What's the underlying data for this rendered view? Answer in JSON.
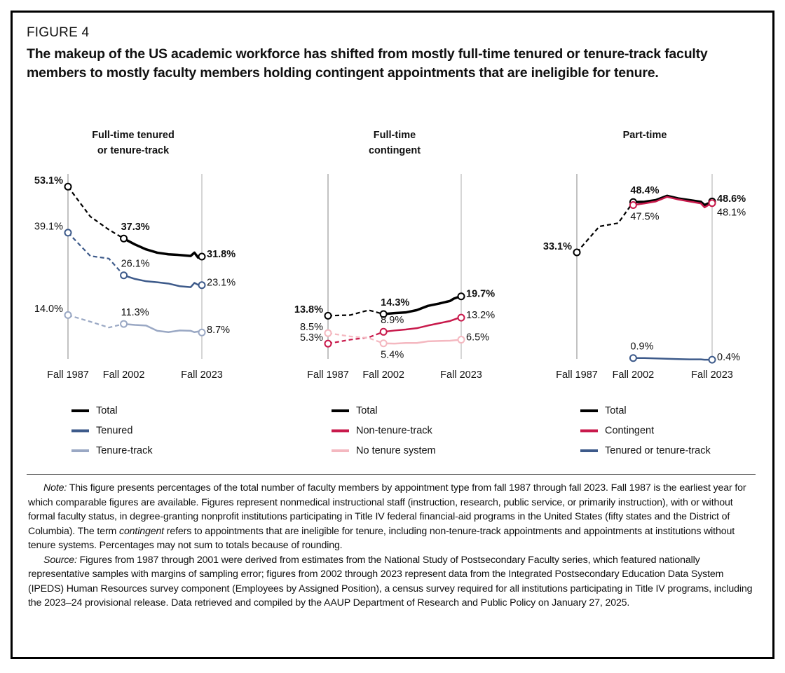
{
  "figure_label": "FIGURE 4",
  "title": "The makeup of the US academic workforce has shifted from mostly full-time tenured or tenure-track faculty members to mostly faculty members holding contingent appointments that are ineligible for tenure.",
  "chart_data": [
    {
      "type": "line",
      "title": "Full-time tenured or tenure-track",
      "x": [
        1987,
        1993,
        1998,
        2002,
        2005,
        2008,
        2011,
        2014,
        2017,
        2020,
        2021,
        2022,
        2023
      ],
      "xlim": [
        1987,
        2023
      ],
      "xticks": [
        {
          "value": 1987,
          "label": "Fall 1987"
        },
        {
          "value": 2002,
          "label": "Fall 2002"
        },
        {
          "value": 2023,
          "label": "Fall 2023"
        }
      ],
      "ylim": [
        0,
        57
      ],
      "dashed_until": 2002,
      "series": [
        {
          "name": "Total",
          "color": "#000000",
          "values": [
            53.1,
            44.0,
            40.0,
            37.3,
            35.5,
            34.0,
            33.0,
            32.5,
            32.3,
            32.0,
            33.0,
            31.5,
            31.8
          ],
          "value_labels": [
            "53.1%",
            null,
            null,
            "37.3%",
            null,
            null,
            null,
            null,
            null,
            null,
            null,
            null,
            "31.8%"
          ]
        },
        {
          "name": "Tenured",
          "color": "#3d5a8a",
          "values": [
            39.1,
            32.0,
            31.2,
            26.1,
            25.0,
            24.3,
            24.0,
            23.6,
            22.8,
            22.5,
            23.8,
            23.2,
            23.1
          ],
          "value_labels": [
            "39.1%",
            null,
            null,
            "26.1%",
            null,
            null,
            null,
            null,
            null,
            null,
            null,
            null,
            "23.1%"
          ]
        },
        {
          "name": "Tenure-track",
          "color": "#9aa8c4",
          "values": [
            14.0,
            12.0,
            10.2,
            11.3,
            11.0,
            10.8,
            9.2,
            8.8,
            9.3,
            9.2,
            8.8,
            9.0,
            8.7
          ],
          "value_labels": [
            "14.0%",
            null,
            null,
            "11.3%",
            null,
            null,
            null,
            null,
            null,
            null,
            null,
            null,
            "8.7%"
          ]
        }
      ]
    },
    {
      "type": "line",
      "title": "Full-time contingent",
      "x": [
        1987,
        1993,
        1998,
        2002,
        2005,
        2008,
        2011,
        2014,
        2017,
        2020,
        2021,
        2022,
        2023
      ],
      "xlim": [
        1987,
        2023
      ],
      "xticks": [
        {
          "value": 1987,
          "label": "Fall 1987"
        },
        {
          "value": 2002,
          "label": "Fall 2002"
        },
        {
          "value": 2023,
          "label": "Fall 2023"
        }
      ],
      "ylim": [
        0,
        57
      ],
      "dashed_until": 2002,
      "series": [
        {
          "name": "Total",
          "color": "#000000",
          "values": [
            13.8,
            14.0,
            15.5,
            14.3,
            14.6,
            14.8,
            15.5,
            16.8,
            17.5,
            18.3,
            19.0,
            19.4,
            19.7
          ],
          "value_labels": [
            "13.8%",
            null,
            null,
            "14.3%",
            null,
            null,
            null,
            null,
            null,
            null,
            null,
            null,
            "19.7%"
          ]
        },
        {
          "name": "Non-tenure-track",
          "color": "#c8194b",
          "values": [
            5.3,
            6.5,
            7.2,
            8.9,
            9.3,
            9.6,
            10.0,
            10.8,
            11.5,
            12.2,
            12.6,
            13.0,
            13.2
          ],
          "value_labels": [
            "5.3%",
            null,
            null,
            "8.9%",
            null,
            null,
            null,
            null,
            null,
            null,
            null,
            null,
            "13.2%"
          ]
        },
        {
          "name": "No tenure system",
          "color": "#f4b8c0",
          "values": [
            8.5,
            7.5,
            7.0,
            5.4,
            5.3,
            5.5,
            5.5,
            6.0,
            6.1,
            6.2,
            6.3,
            6.4,
            6.5
          ],
          "value_labels": [
            "8.5%",
            null,
            null,
            "5.4%",
            null,
            null,
            null,
            null,
            null,
            null,
            null,
            null,
            "6.5%"
          ]
        }
      ]
    },
    {
      "type": "line",
      "title": "Part-time",
      "x": [
        1987,
        1993,
        1998,
        2002,
        2005,
        2008,
        2011,
        2014,
        2017,
        2020,
        2021,
        2022,
        2023
      ],
      "xlim": [
        1987,
        2023
      ],
      "xticks": [
        {
          "value": 1987,
          "label": "Fall 1987"
        },
        {
          "value": 2002,
          "label": "Fall 2002"
        },
        {
          "value": 2023,
          "label": "Fall 2023"
        }
      ],
      "ylim": [
        0,
        57
      ],
      "dashed_until": 2002,
      "series": [
        {
          "name": "Total",
          "color": "#000000",
          "values": [
            33.1,
            41.0,
            42.0,
            48.4,
            48.5,
            49.0,
            50.3,
            49.5,
            49.0,
            48.5,
            47.5,
            48.0,
            48.6
          ],
          "value_labels": [
            "33.1%",
            null,
            null,
            "48.4%",
            null,
            null,
            null,
            null,
            null,
            null,
            null,
            null,
            "48.6%"
          ]
        },
        {
          "name": "Contingent",
          "color": "#c8194b",
          "values": [
            null,
            null,
            null,
            47.5,
            48.0,
            48.6,
            50.0,
            49.2,
            48.6,
            48.0,
            46.8,
            47.5,
            48.1
          ],
          "value_labels": [
            null,
            null,
            null,
            "47.5%",
            null,
            null,
            null,
            null,
            null,
            null,
            null,
            null,
            "48.1%"
          ]
        },
        {
          "name": "Tenured or tenure-track",
          "color": "#3d5a8a",
          "values": [
            null,
            null,
            null,
            0.9,
            0.9,
            0.8,
            0.7,
            0.6,
            0.5,
            0.5,
            0.4,
            0.4,
            0.4
          ],
          "value_labels": [
            null,
            null,
            null,
            "0.9%",
            null,
            null,
            null,
            null,
            null,
            null,
            null,
            null,
            "0.4%"
          ]
        }
      ]
    }
  ],
  "note": {
    "label": "Note:",
    "parts": [
      "This figure presents percentages of the total number of faculty members by appointment type from fall 1987 through fall 2023. Fall 1987 is the earliest year for which comparable figures are available. Figures represent nonmedical instructional staff (instruction, research, public service, or primarily instruction), with or without formal faculty status, in degree-granting nonprofit institutions participating in Title IV federal financial-aid programs in the United States (fifty states and the District of Columbia). The term ",
      "contingent",
      " refers to appointments that are ineligible for tenure, including non-tenure-track appointments and appointments at institutions without tenure systems. Percentages may not sum to totals because of rounding."
    ]
  },
  "source": {
    "label": "Source:",
    "text": "Figures from 1987 through 2001 were derived from estimates from the National Study of Postsecondary Faculty series, which featured nationally representative samples with margins of sampling error; figures from 2002 through 2023 represent data from the Integrated Postsecondary Education Data System (IPEDS) Human Resources survey component (Employees by Assigned Position), a census survey required for all institutions participating in Title IV programs, including the 2023–24 provisional release. Data retrieved and compiled by the AAUP Department of Research and Public Policy on January 27, 2025."
  }
}
